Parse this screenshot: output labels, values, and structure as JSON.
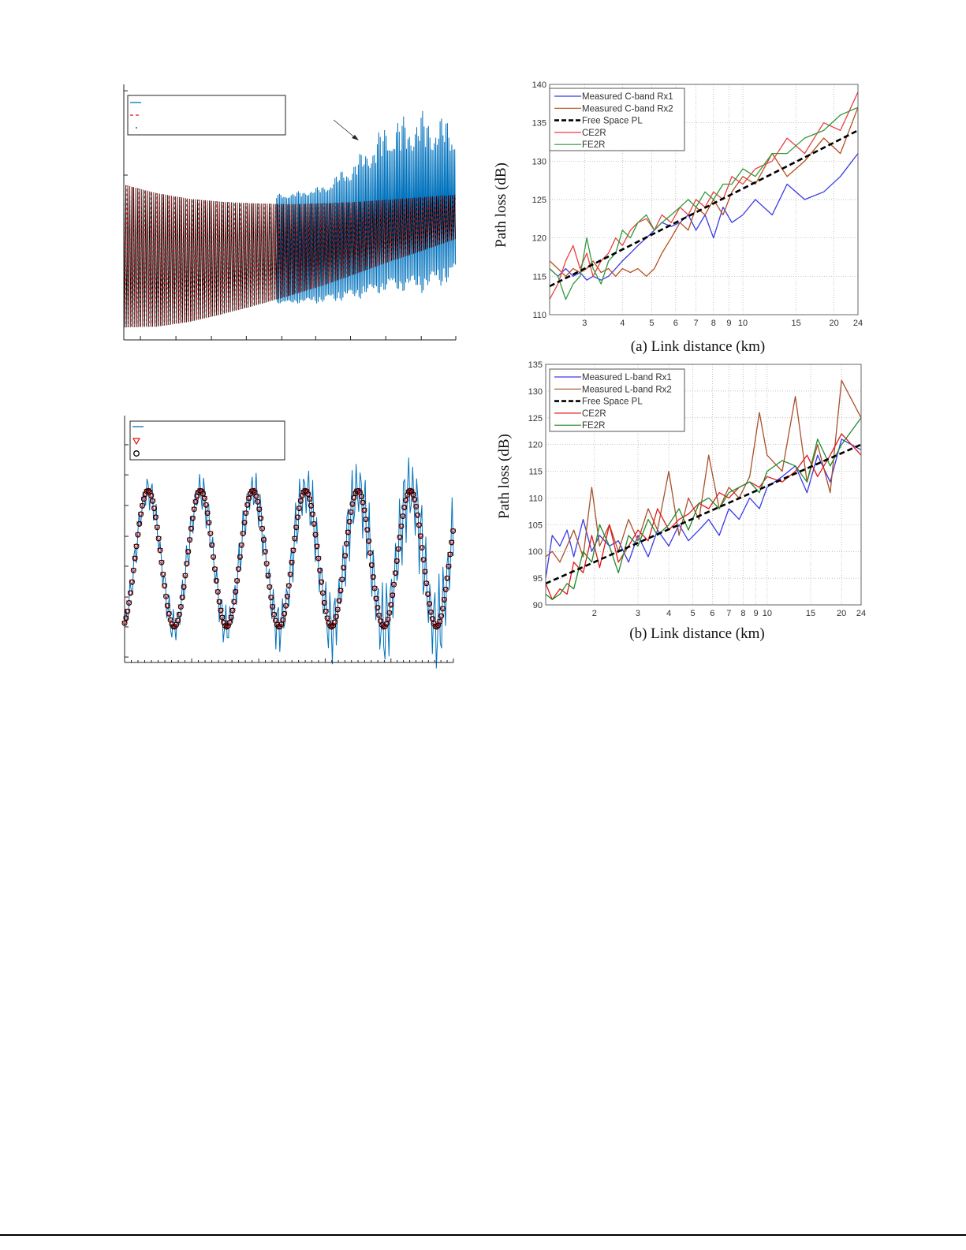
{
  "chart_data": [
    {
      "type": "line",
      "title": "",
      "xlabel": "",
      "ylabel": "",
      "xlim": [
        0,
        10
      ],
      "ylim": [
        0,
        10
      ],
      "xticks": [
        0.5,
        1.57,
        2.64,
        3.69,
        4.76,
        5.78,
        6.83,
        7.89,
        8.96,
        10
      ],
      "yticks": [
        6.45,
        9.75
      ],
      "legend_placement": "top-left",
      "legend_entries": [
        "",
        "",
        ""
      ],
      "envelope_x": [
        0,
        1,
        2,
        3,
        4,
        5,
        6,
        7,
        8,
        9,
        10
      ],
      "model_upper": [
        6.08,
        5.74,
        5.52,
        5.4,
        5.34,
        5.31,
        5.34,
        5.4,
        5.49,
        5.59,
        5.68
      ],
      "model_lower": [
        0.49,
        0.52,
        0.71,
        1.02,
        1.36,
        1.73,
        2.13,
        2.59,
        3.06,
        3.49,
        3.95
      ],
      "measured_x": [
        4.6,
        5,
        6,
        7,
        8,
        9,
        10
      ],
      "measured_upper": [
        5.74,
        5.74,
        6.05,
        7.13,
        8.67,
        8.98,
        8.67
      ],
      "measured_lower": [
        1.42,
        1.42,
        1.42,
        1.57,
        1.88,
        1.82,
        2.28
      ],
      "colors": {
        "measured": "#0072bd",
        "model_dashed": "#e01010",
        "model_dots": "#000000"
      }
    },
    {
      "type": "line",
      "title": "",
      "xlabel": "",
      "ylabel": "",
      "xlim": [
        0,
        10
      ],
      "ylim": [
        0,
        10
      ],
      "xticks_major": [
        0,
        2.04,
        4.08,
        6.1,
        8.1,
        10
      ],
      "yticks": [
        0.22,
        1.44,
        2.65,
        3.9,
        5.11,
        6.36,
        7.6,
        8.82
      ],
      "legend_placement": "top-left",
      "legend_entries": [
        "",
        "",
        ""
      ],
      "model": {
        "mean": 4.2,
        "amplitude": 2.76,
        "period": 1.595,
        "first_trough": 1.51
      },
      "measured_deviation_x": [
        0,
        2,
        4,
        6,
        8,
        10
      ],
      "measured_deviation": [
        0.7,
        0.9,
        1.0,
        1.5,
        1.9,
        2.1
      ],
      "colors": {
        "measured": "#0072bd",
        "triangles": "#e01010",
        "circles": "#000000"
      }
    },
    {
      "type": "line",
      "caption": "(a) Link distance (km)",
      "ylabel": "Path loss (dB)",
      "x_scale": "log",
      "xlim": [
        2.3,
        24
      ],
      "ylim": [
        110,
        140
      ],
      "xticks": [
        3,
        4,
        5,
        6,
        7,
        8,
        9,
        10,
        15,
        20,
        24
      ],
      "yticks": [
        110,
        115,
        120,
        125,
        130,
        135,
        140
      ],
      "grid": true,
      "legend_placement": "top-left",
      "x": [
        2.3,
        2.45,
        2.6,
        2.75,
        2.9,
        3.05,
        3.2,
        3.4,
        3.6,
        3.8,
        4.0,
        4.25,
        4.5,
        4.8,
        5.1,
        5.4,
        5.8,
        6.2,
        6.6,
        7.0,
        7.5,
        8.0,
        8.6,
        9.2,
        10,
        11,
        12.5,
        14,
        16,
        18.5,
        21,
        24
      ],
      "series": [
        {
          "name": "Measured C-band Rx1",
          "color": "#3a3ae6",
          "style": "solid",
          "values": [
            116,
            115,
            116,
            115,
            115.5,
            114.5,
            115,
            114.5,
            115,
            116,
            117,
            118,
            119,
            120,
            121,
            122,
            121.5,
            122,
            123,
            121,
            123,
            120,
            124,
            122,
            123,
            125,
            123,
            127,
            125,
            126,
            128,
            131
          ]
        },
        {
          "name": "Measured C-band Rx2",
          "color": "#b5501f",
          "style": "solid",
          "values": [
            117,
            116,
            115,
            116,
            115.5,
            116,
            117,
            115.5,
            116,
            115,
            116,
            115.5,
            116,
            115,
            116,
            118,
            120,
            122,
            121,
            124,
            123,
            125,
            123,
            126,
            128,
            127,
            131,
            128,
            130,
            133,
            131,
            137
          ]
        },
        {
          "name": "Free Space PL",
          "color": "#000000",
          "style": "dashed",
          "x": [
            2.3,
            24
          ],
          "values": [
            113.7,
            134
          ]
        },
        {
          "name": "CE2R",
          "color": "#e84040",
          "style": "solid",
          "values": [
            112,
            114,
            117,
            119,
            116,
            118,
            115,
            117,
            118,
            120,
            119,
            121,
            122,
            122.5,
            121,
            123,
            122,
            124,
            123,
            125,
            124,
            126,
            125,
            128,
            127,
            129,
            130,
            133,
            131,
            135,
            134,
            139
          ]
        },
        {
          "name": "FE2R",
          "color": "#2f9a3a",
          "style": "solid",
          "values": [
            116,
            115,
            112,
            114,
            115,
            120,
            116,
            114,
            117,
            118,
            121,
            120,
            122,
            123,
            121,
            122,
            123,
            124,
            125,
            124,
            126,
            125,
            127,
            127,
            129,
            128,
            131,
            131,
            133,
            134,
            136,
            137
          ]
        }
      ]
    },
    {
      "type": "line",
      "caption": "(b) Link distance (km)",
      "ylabel": "Path loss (dB)",
      "x_scale": "log",
      "xlim": [
        1.27,
        24
      ],
      "ylim": [
        90,
        135
      ],
      "xticks": [
        2,
        3,
        4,
        5,
        6,
        7,
        8,
        9,
        10,
        15,
        20,
        24
      ],
      "yticks": [
        90,
        95,
        100,
        105,
        110,
        115,
        120,
        125,
        130,
        135
      ],
      "grid": true,
      "legend_placement": "top-left",
      "x": [
        1.27,
        1.35,
        1.45,
        1.55,
        1.65,
        1.8,
        1.95,
        2.1,
        2.3,
        2.5,
        2.75,
        3,
        3.3,
        3.6,
        4,
        4.4,
        4.8,
        5.3,
        5.8,
        6.4,
        7,
        7.7,
        8.5,
        9.3,
        10,
        11.5,
        13,
        14.5,
        16,
        18,
        20,
        24
      ],
      "series": [
        {
          "name": "Measured L-band Rx1",
          "color": "#3a3ae6",
          "style": "solid",
          "values": [
            95,
            103,
            101,
            104,
            99,
            106,
            100,
            103,
            101,
            102,
            98,
            103,
            99,
            104,
            101,
            105,
            102,
            104,
            106,
            103,
            108,
            106,
            110,
            108,
            112,
            114,
            116,
            111,
            118,
            113,
            121,
            119
          ]
        },
        {
          "name": "Measured L-band Rx2",
          "color": "#a8502a",
          "style": "solid",
          "values": [
            99,
            100,
            98,
            101,
            104,
            99,
            112,
            101,
            105,
            100,
            106,
            102,
            108,
            104,
            115,
            103,
            110,
            106,
            118,
            108,
            112,
            110,
            114,
            126,
            118,
            115,
            129,
            113,
            120,
            111,
            132,
            125
          ]
        },
        {
          "name": "Free Space PL",
          "color": "#000000",
          "style": "dashed",
          "x": [
            1.27,
            24
          ],
          "values": [
            94,
            120
          ]
        },
        {
          "name": "CE2R",
          "color": "#e01818",
          "style": "solid",
          "values": [
            94,
            91,
            93,
            92,
            98,
            96,
            103,
            97,
            105,
            98,
            101,
            104,
            102,
            108,
            104,
            106,
            107,
            109,
            108,
            111,
            110,
            112,
            113,
            112,
            114,
            113,
            115,
            118,
            114,
            118,
            122,
            118
          ]
        },
        {
          "name": "FE2R",
          "color": "#1f8a2a",
          "style": "solid",
          "values": [
            92,
            91,
            92,
            94,
            93,
            100,
            98,
            105,
            101,
            96,
            103,
            101,
            106,
            103,
            105,
            108,
            104,
            109,
            110,
            108,
            111,
            112,
            113,
            111,
            115,
            117,
            116,
            113,
            121,
            116,
            120,
            125
          ]
        }
      ]
    }
  ]
}
